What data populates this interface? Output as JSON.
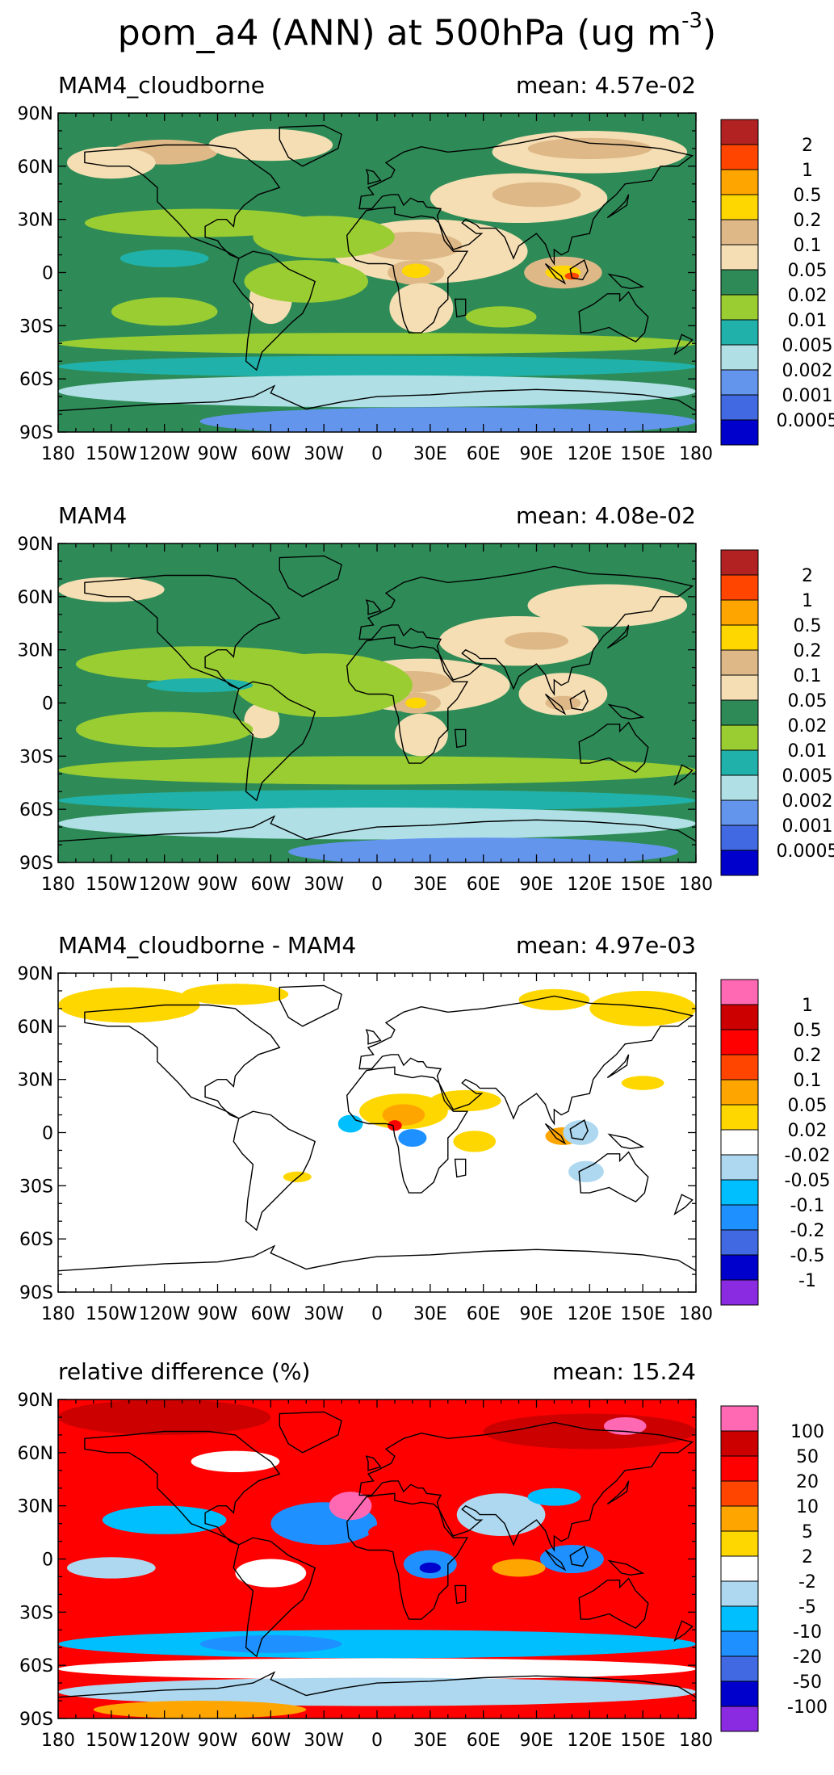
{
  "title": {
    "main": "pom_a4 (ANN) at 500hPa (ug m",
    "exponent": "-3",
    "close": ")"
  },
  "panels": [
    {
      "title": "MAM4_cloudborne",
      "mean": "mean: 4.57e-02",
      "background_color": "#2E8B57",
      "legend": {
        "labels": [
          "2",
          "1",
          "0.5",
          "0.2",
          "0.1",
          "0.05",
          "0.02",
          "0.01",
          "0.005",
          "0.002",
          "0.001",
          "0.0005"
        ],
        "colors": [
          "#B22222",
          "#FF4500",
          "#FFA500",
          "#FFD700",
          "#DEB887",
          "#F5DEB3",
          "#2E8B57",
          "#9ACD32",
          "#20B2AA",
          "#B0E0E6",
          "#6495ED",
          "#4169E1",
          "#0000CD"
        ]
      }
    },
    {
      "title": "MAM4",
      "mean": "mean: 4.08e-02",
      "background_color": "#2E8B57",
      "legend": {
        "labels": [
          "2",
          "1",
          "0.5",
          "0.2",
          "0.1",
          "0.05",
          "0.02",
          "0.01",
          "0.005",
          "0.002",
          "0.001",
          "0.0005"
        ],
        "colors": [
          "#B22222",
          "#FF4500",
          "#FFA500",
          "#FFD700",
          "#DEB887",
          "#F5DEB3",
          "#2E8B57",
          "#9ACD32",
          "#20B2AA",
          "#B0E0E6",
          "#6495ED",
          "#4169E1",
          "#0000CD"
        ]
      }
    },
    {
      "title": "MAM4_cloudborne - MAM4",
      "mean": "mean: 4.97e-03",
      "background_color": "#FFFFFF",
      "legend": {
        "labels": [
          "1",
          "0.5",
          "0.2",
          "0.1",
          "0.05",
          "0.02",
          "-0.02",
          "-0.05",
          "-0.1",
          "-0.2",
          "-0.5",
          "-1"
        ],
        "colors": [
          "#FF69B4",
          "#CD0000",
          "#FF0000",
          "#FF4500",
          "#FFA500",
          "#FFD700",
          "#FFFFFF",
          "#ADD8F0",
          "#00BFFF",
          "#1E90FF",
          "#4169E1",
          "#0000CD",
          "#8A2BE2"
        ]
      }
    },
    {
      "title": "relative difference (%)",
      "mean": "mean: 15.24",
      "background_color": "#FF0000",
      "legend": {
        "labels": [
          "100",
          "50",
          "20",
          "10",
          "5",
          "2",
          "-2",
          "-5",
          "-10",
          "-20",
          "-50",
          "-100"
        ],
        "colors": [
          "#FF69B4",
          "#CD0000",
          "#FF0000",
          "#FF4500",
          "#FFA500",
          "#FFD700",
          "#FFFFFF",
          "#ADD8F0",
          "#00BFFF",
          "#1E90FF",
          "#4169E1",
          "#0000CD",
          "#8A2BE2"
        ]
      }
    }
  ],
  "axes": {
    "lat_labels": [
      "90N",
      "60N",
      "30N",
      "0",
      "30S",
      "60S",
      "90S"
    ],
    "lon_labels": [
      "180",
      "150W",
      "120W",
      "90W",
      "60W",
      "30W",
      "0",
      "30E",
      "60E",
      "90E",
      "120E",
      "150E",
      "180"
    ]
  },
  "fields": [
    [
      {
        "lon": -120,
        "lat": 68,
        "rx": 30,
        "ry": 7,
        "color": "#DEB887"
      },
      {
        "lon": -150,
        "lat": 62,
        "rx": 25,
        "ry": 9,
        "color": "#F5DEB3"
      },
      {
        "lon": -60,
        "lat": 72,
        "rx": 35,
        "ry": 9,
        "color": "#F5DEB3"
      },
      {
        "lon": 120,
        "lat": 68,
        "rx": 55,
        "ry": 12,
        "color": "#F5DEB3"
      },
      {
        "lon": 120,
        "lat": 70,
        "rx": 35,
        "ry": 6,
        "color": "#DEB887"
      },
      {
        "lon": 80,
        "lat": 42,
        "rx": 50,
        "ry": 14,
        "color": "#F5DEB3"
      },
      {
        "lon": 90,
        "lat": 44,
        "rx": 25,
        "ry": 7,
        "color": "#DEB887"
      },
      {
        "lon": 30,
        "lat": 12,
        "rx": 55,
        "ry": 18,
        "color": "#F5DEB3"
      },
      {
        "lon": 20,
        "lat": 15,
        "rx": 28,
        "ry": 8,
        "color": "#DEB887"
      },
      {
        "lon": 22,
        "lat": 0,
        "rx": 16,
        "ry": 7,
        "color": "#DEB887"
      },
      {
        "lon": 22,
        "lat": 1,
        "rx": 8,
        "ry": 4,
        "color": "#FFD700"
      },
      {
        "lon": 25,
        "lat": -20,
        "rx": 18,
        "ry": 14,
        "color": "#F5DEB3"
      },
      {
        "lon": 105,
        "lat": 0,
        "rx": 22,
        "ry": 9,
        "color": "#DEB887"
      },
      {
        "lon": 105,
        "lat": 0,
        "rx": 10,
        "ry": 4,
        "color": "#FFD700"
      },
      {
        "lon": 110,
        "lat": -2,
        "rx": 4,
        "ry": 2,
        "color": "#FF4500"
      },
      {
        "lon": -60,
        "lat": -15,
        "rx": 12,
        "ry": 14,
        "color": "#F5DEB3"
      },
      {
        "lon": -100,
        "lat": 28,
        "rx": 65,
        "ry": 8,
        "color": "#9ACD32"
      },
      {
        "lon": -30,
        "lat": 20,
        "rx": 40,
        "ry": 12,
        "color": "#9ACD32"
      },
      {
        "lon": -120,
        "lat": 8,
        "rx": 25,
        "ry": 5,
        "color": "#20B2AA"
      },
      {
        "lon": -40,
        "lat": -5,
        "rx": 35,
        "ry": 12,
        "color": "#9ACD32"
      },
      {
        "lon": -120,
        "lat": -22,
        "rx": 30,
        "ry": 8,
        "color": "#9ACD32"
      },
      {
        "lon": 70,
        "lat": -25,
        "rx": 20,
        "ry": 6,
        "color": "#9ACD32"
      },
      {
        "lon": 0,
        "lat": -40,
        "rx": 180,
        "ry": 6,
        "color": "#9ACD32"
      },
      {
        "lon": 0,
        "lat": -53,
        "rx": 180,
        "ry": 6,
        "color": "#20B2AA"
      },
      {
        "lon": 0,
        "lat": -67,
        "rx": 180,
        "ry": 9,
        "color": "#B0E0E6"
      },
      {
        "lon": 40,
        "lat": -84,
        "rx": 140,
        "ry": 8,
        "color": "#6495ED"
      }
    ],
    [
      {
        "lon": -150,
        "lat": 64,
        "rx": 30,
        "ry": 7,
        "color": "#F5DEB3"
      },
      {
        "lon": 130,
        "lat": 55,
        "rx": 45,
        "ry": 12,
        "color": "#F5DEB3"
      },
      {
        "lon": 80,
        "lat": 35,
        "rx": 45,
        "ry": 14,
        "color": "#F5DEB3"
      },
      {
        "lon": 90,
        "lat": 35,
        "rx": 18,
        "ry": 5,
        "color": "#DEB887"
      },
      {
        "lon": 25,
        "lat": 10,
        "rx": 50,
        "ry": 15,
        "color": "#F5DEB3"
      },
      {
        "lon": 20,
        "lat": 12,
        "rx": 22,
        "ry": 6,
        "color": "#DEB887"
      },
      {
        "lon": 22,
        "lat": 0,
        "rx": 14,
        "ry": 6,
        "color": "#DEB887"
      },
      {
        "lon": 22,
        "lat": 0,
        "rx": 6,
        "ry": 3,
        "color": "#FFD700"
      },
      {
        "lon": 25,
        "lat": -18,
        "rx": 15,
        "ry": 12,
        "color": "#F5DEB3"
      },
      {
        "lon": 105,
        "lat": 5,
        "rx": 25,
        "ry": 12,
        "color": "#F5DEB3"
      },
      {
        "lon": 105,
        "lat": 0,
        "rx": 10,
        "ry": 4,
        "color": "#DEB887"
      },
      {
        "lon": -65,
        "lat": -10,
        "rx": 10,
        "ry": 10,
        "color": "#F5DEB3"
      },
      {
        "lon": -100,
        "lat": 22,
        "rx": 70,
        "ry": 10,
        "color": "#9ACD32"
      },
      {
        "lon": -30,
        "lat": 10,
        "rx": 50,
        "ry": 18,
        "color": "#9ACD32"
      },
      {
        "lon": -100,
        "lat": 10,
        "rx": 30,
        "ry": 4,
        "color": "#20B2AA"
      },
      {
        "lon": -120,
        "lat": -15,
        "rx": 50,
        "ry": 10,
        "color": "#9ACD32"
      },
      {
        "lon": 0,
        "lat": -38,
        "rx": 180,
        "ry": 8,
        "color": "#9ACD32"
      },
      {
        "lon": 0,
        "lat": -55,
        "rx": 180,
        "ry": 6,
        "color": "#20B2AA"
      },
      {
        "lon": 0,
        "lat": -68,
        "rx": 180,
        "ry": 9,
        "color": "#B0E0E6"
      },
      {
        "lon": 60,
        "lat": -84,
        "rx": 110,
        "ry": 8,
        "color": "#6495ED"
      }
    ],
    [
      {
        "lon": -140,
        "lat": 72,
        "rx": 40,
        "ry": 10,
        "color": "#FFD700"
      },
      {
        "lon": -80,
        "lat": 78,
        "rx": 30,
        "ry": 6,
        "color": "#FFD700"
      },
      {
        "lon": 150,
        "lat": 70,
        "rx": 30,
        "ry": 10,
        "color": "#FFD700"
      },
      {
        "lon": 100,
        "lat": 75,
        "rx": 20,
        "ry": 6,
        "color": "#FFD700"
      },
      {
        "lon": 15,
        "lat": 12,
        "rx": 25,
        "ry": 10,
        "color": "#FFD700"
      },
      {
        "lon": 15,
        "lat": 10,
        "rx": 12,
        "ry": 6,
        "color": "#FFA500"
      },
      {
        "lon": 10,
        "lat": 4,
        "rx": 4,
        "ry": 3,
        "color": "#FF0000"
      },
      {
        "lon": 50,
        "lat": 18,
        "rx": 20,
        "ry": 6,
        "color": "#FFD700"
      },
      {
        "lon": 55,
        "lat": -5,
        "rx": 12,
        "ry": 6,
        "color": "#FFD700"
      },
      {
        "lon": -15,
        "lat": 5,
        "rx": 7,
        "ry": 5,
        "color": "#00BFFF"
      },
      {
        "lon": 20,
        "lat": -3,
        "rx": 8,
        "ry": 5,
        "color": "#1E90FF"
      },
      {
        "lon": 105,
        "lat": -2,
        "rx": 10,
        "ry": 5,
        "color": "#FFA500"
      },
      {
        "lon": 115,
        "lat": 0,
        "rx": 10,
        "ry": 7,
        "color": "#ADD8F0"
      },
      {
        "lon": 118,
        "lat": -22,
        "rx": 10,
        "ry": 6,
        "color": "#ADD8F0"
      },
      {
        "lon": -45,
        "lat": -25,
        "rx": 8,
        "ry": 3,
        "color": "#FFD700"
      },
      {
        "lon": 150,
        "lat": 28,
        "rx": 12,
        "ry": 4,
        "color": "#FFD700"
      }
    ],
    [
      {
        "lon": -120,
        "lat": 80,
        "rx": 60,
        "ry": 10,
        "color": "#CD0000"
      },
      {
        "lon": 120,
        "lat": 72,
        "rx": 60,
        "ry": 10,
        "color": "#CD0000"
      },
      {
        "lon": 140,
        "lat": 75,
        "rx": 12,
        "ry": 5,
        "color": "#FF69B4"
      },
      {
        "lon": -80,
        "lat": 55,
        "rx": 25,
        "ry": 6,
        "color": "#FFFFFF"
      },
      {
        "lon": -120,
        "lat": 22,
        "rx": 35,
        "ry": 8,
        "color": "#00BFFF"
      },
      {
        "lon": -30,
        "lat": 20,
        "rx": 30,
        "ry": 12,
        "color": "#1E90FF"
      },
      {
        "lon": -15,
        "lat": 30,
        "rx": 12,
        "ry": 8,
        "color": "#FF69B4"
      },
      {
        "lon": 30,
        "lat": 15,
        "rx": 35,
        "ry": 8,
        "color": "#FF0000"
      },
      {
        "lon": 70,
        "lat": 25,
        "rx": 25,
        "ry": 12,
        "color": "#ADD8F0"
      },
      {
        "lon": 30,
        "lat": -3,
        "rx": 15,
        "ry": 8,
        "color": "#1E90FF"
      },
      {
        "lon": 30,
        "lat": -5,
        "rx": 6,
        "ry": 3,
        "color": "#0000CD"
      },
      {
        "lon": -60,
        "lat": -8,
        "rx": 20,
        "ry": 8,
        "color": "#FFFFFF"
      },
      {
        "lon": 110,
        "lat": 0,
        "rx": 18,
        "ry": 8,
        "color": "#1E90FF"
      },
      {
        "lon": 100,
        "lat": 35,
        "rx": 15,
        "ry": 5,
        "color": "#00BFFF"
      },
      {
        "lon": 80,
        "lat": -5,
        "rx": 15,
        "ry": 5,
        "color": "#FFA500"
      },
      {
        "lon": -150,
        "lat": -5,
        "rx": 25,
        "ry": 6,
        "color": "#ADD8F0"
      },
      {
        "lon": 0,
        "lat": -48,
        "rx": 180,
        "ry": 8,
        "color": "#00BFFF"
      },
      {
        "lon": -60,
        "lat": -48,
        "rx": 40,
        "ry": 5,
        "color": "#1E90FF"
      },
      {
        "lon": 0,
        "lat": -62,
        "rx": 180,
        "ry": 6,
        "color": "#FFFFFF"
      },
      {
        "lon": 0,
        "lat": -75,
        "rx": 180,
        "ry": 8,
        "color": "#ADD8F0"
      },
      {
        "lon": -100,
        "lat": -85,
        "rx": 60,
        "ry": 5,
        "color": "#FFA500"
      }
    ]
  ]
}
